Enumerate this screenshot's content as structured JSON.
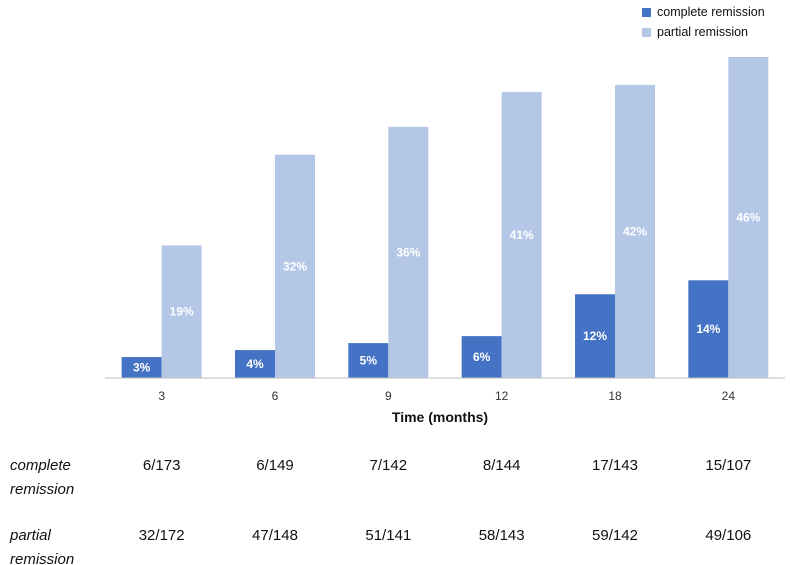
{
  "chart_data": {
    "type": "bar",
    "title": "",
    "xlabel": "Time (months)",
    "ylabel": "",
    "ylim": [
      0,
      46
    ],
    "grid": false,
    "legend_position": "top-right",
    "categories": [
      "3",
      "6",
      "9",
      "12",
      "18",
      "24"
    ],
    "series": [
      {
        "name": "complete remission",
        "color": "#4472C4",
        "values": [
          3,
          4,
          5,
          6,
          12,
          14
        ],
        "labels": [
          "3%",
          "4%",
          "5%",
          "6%",
          "12%",
          "14%"
        ]
      },
      {
        "name": "partial remission",
        "color": "#B4C7E7",
        "values": [
          19,
          32,
          36,
          41,
          42,
          46
        ],
        "labels": [
          "19%",
          "32%",
          "36%",
          "41%",
          "42%",
          "46%"
        ]
      }
    ]
  },
  "table": {
    "rows": [
      {
        "label_lines": [
          "complete",
          "remission"
        ],
        "values": [
          "6/173",
          "6/149",
          "7/142",
          "8/144",
          "17/143",
          "15/107"
        ]
      },
      {
        "label_lines": [
          "partial",
          "remission"
        ],
        "values": [
          "32/172",
          "47/148",
          "51/141",
          "58/143",
          "59/142",
          "49/106"
        ]
      }
    ]
  }
}
